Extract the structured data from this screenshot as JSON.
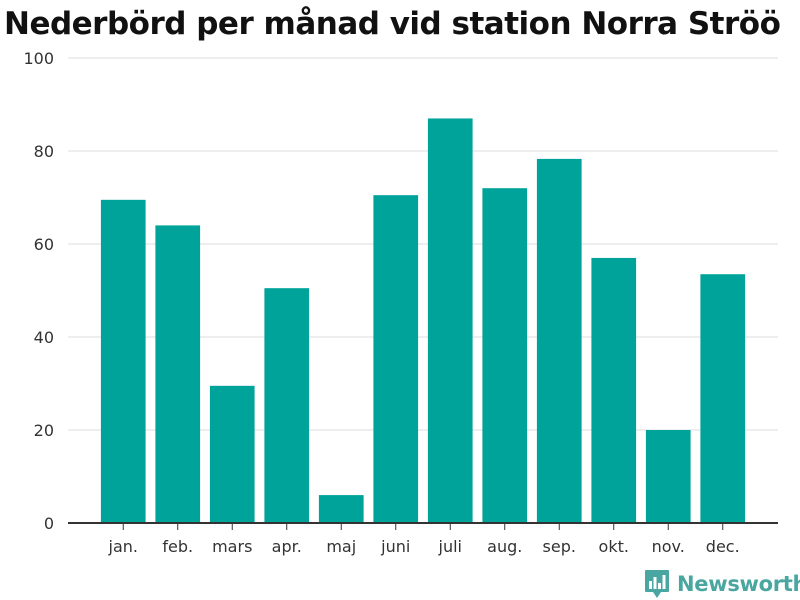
{
  "chart_data": {
    "type": "bar",
    "title": "Nederbörd per månad vid station Norra Ströö",
    "categories": [
      "jan.",
      "feb.",
      "mars",
      "apr.",
      "maj",
      "juni",
      "juli",
      "aug.",
      "sep.",
      "okt.",
      "nov.",
      "dec."
    ],
    "values": [
      69.5,
      64,
      29.5,
      50.5,
      6,
      70.5,
      87,
      72,
      78.3,
      57,
      20,
      53.5
    ],
    "ylim": [
      0,
      100
    ],
    "yticks": [
      0,
      20,
      40,
      60,
      80,
      100
    ],
    "grid": true,
    "bar_color": "#00a39a"
  },
  "branding": {
    "logo_text": "Newsworthy",
    "logo_icon": "bar-chart-speech-bubble-icon",
    "logo_color": "#4aa6a0"
  }
}
